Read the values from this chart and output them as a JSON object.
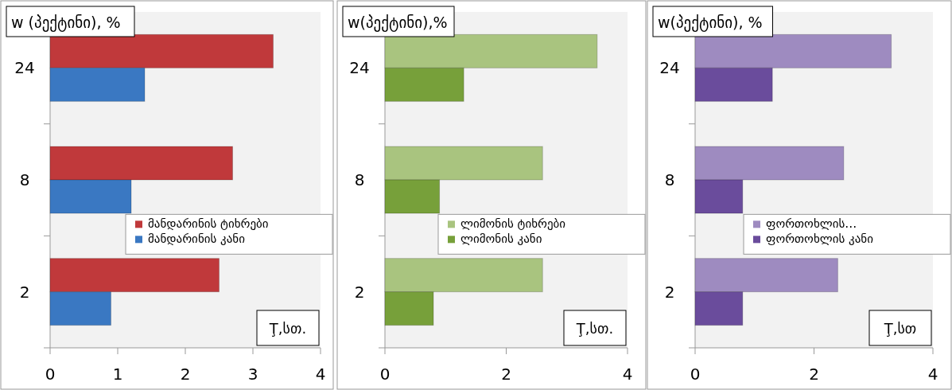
{
  "chart_data": [
    {
      "type": "bar",
      "orientation": "horizontal",
      "categories": [
        "24",
        "8",
        "2"
      ],
      "ylabel": "w (პექტინი), %",
      "xlabel": "Ţ,სთ.",
      "xlim": [
        0,
        4
      ],
      "xticks": [
        0,
        1,
        2,
        3,
        4
      ],
      "legend": "right",
      "grid": false,
      "series": [
        {
          "name": "მანდარინის  ტიხრები",
          "color": "#c0393b",
          "values": [
            3.3,
            2.7,
            2.5
          ]
        },
        {
          "name": "მანდარინის კანი",
          "color": "#3a78c2",
          "values": [
            1.4,
            1.2,
            0.9
          ]
        }
      ]
    },
    {
      "type": "bar",
      "orientation": "horizontal",
      "categories": [
        "24",
        "8",
        "2"
      ],
      "ylabel": "w(პექტინი),%",
      "xlabel": "Ţ,სთ.",
      "xlim": [
        0,
        4
      ],
      "xticks": [
        0,
        2,
        4
      ],
      "legend": "right",
      "grid": false,
      "series": [
        {
          "name": "ლიმონის ტიხრები",
          "color": "#a9c47f",
          "values": [
            3.5,
            2.6,
            2.6
          ]
        },
        {
          "name": "ლიმონის  კანი",
          "color": "#77a03a",
          "values": [
            1.3,
            0.9,
            0.8
          ]
        }
      ]
    },
    {
      "type": "bar",
      "orientation": "horizontal",
      "categories": [
        "24",
        "8",
        "2"
      ],
      "ylabel": "w(პექტინი), %",
      "xlabel": "Ţ,სთ",
      "xlim": [
        0,
        4
      ],
      "xticks": [
        0,
        2,
        4
      ],
      "legend": "right",
      "grid": false,
      "series": [
        {
          "name": "ფორთოხლის…",
          "color": "#9e8bc0",
          "values": [
            3.3,
            2.5,
            2.4
          ]
        },
        {
          "name": "ფორთოხლის კანი",
          "color": "#6a4c9c",
          "values": [
            1.3,
            0.8,
            0.8
          ]
        }
      ]
    }
  ]
}
